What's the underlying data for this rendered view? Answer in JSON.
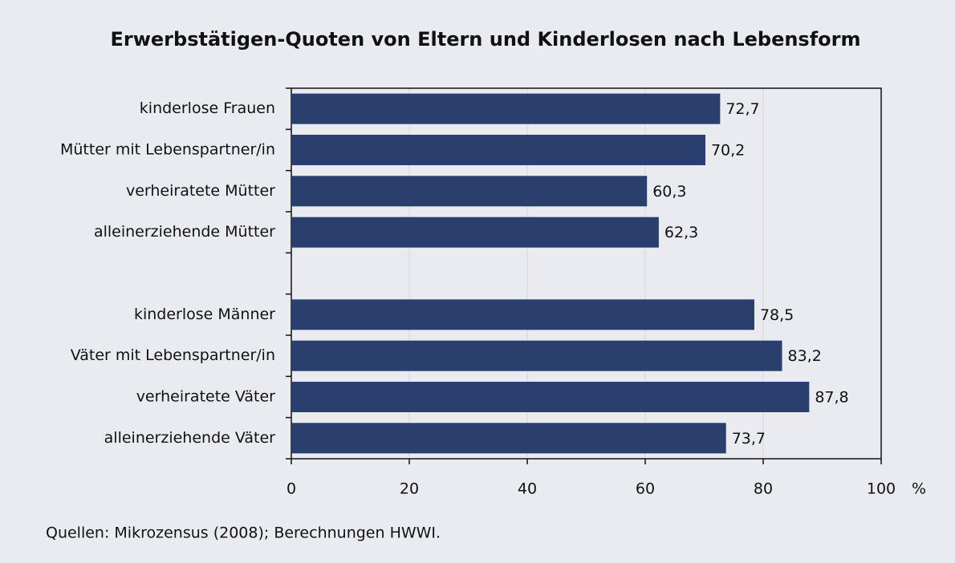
{
  "chart_data": {
    "type": "barh",
    "title": "Erwerbstätigen-Quoten von Eltern und Kinderlosen nach Lebensform",
    "categories": [
      "kinderlose Frauen",
      "Mütter mit Lebenspartner/in",
      "verheiratete Mütter",
      "alleinerziehende Mütter",
      null,
      "kinderlose Männer",
      "Väter mit Lebenspartner/in",
      "verheiratete Väter",
      "alleinerziehende Väter"
    ],
    "values": [
      72.7,
      70.2,
      60.3,
      62.3,
      null,
      78.5,
      83.2,
      87.8,
      73.7
    ],
    "value_labels": [
      "72,7",
      "70,2",
      "60,3",
      "62,3",
      null,
      "78,5",
      "83,2",
      "87,8",
      "73,7"
    ],
    "color": "#2b3f6e",
    "xlim": [
      0,
      100
    ],
    "xticks": [
      0,
      20,
      40,
      60,
      80,
      100
    ],
    "x_unit": "%",
    "grid": true,
    "source": "Quellen: Mikrozensus (2008); Berechnungen HWWI."
  }
}
